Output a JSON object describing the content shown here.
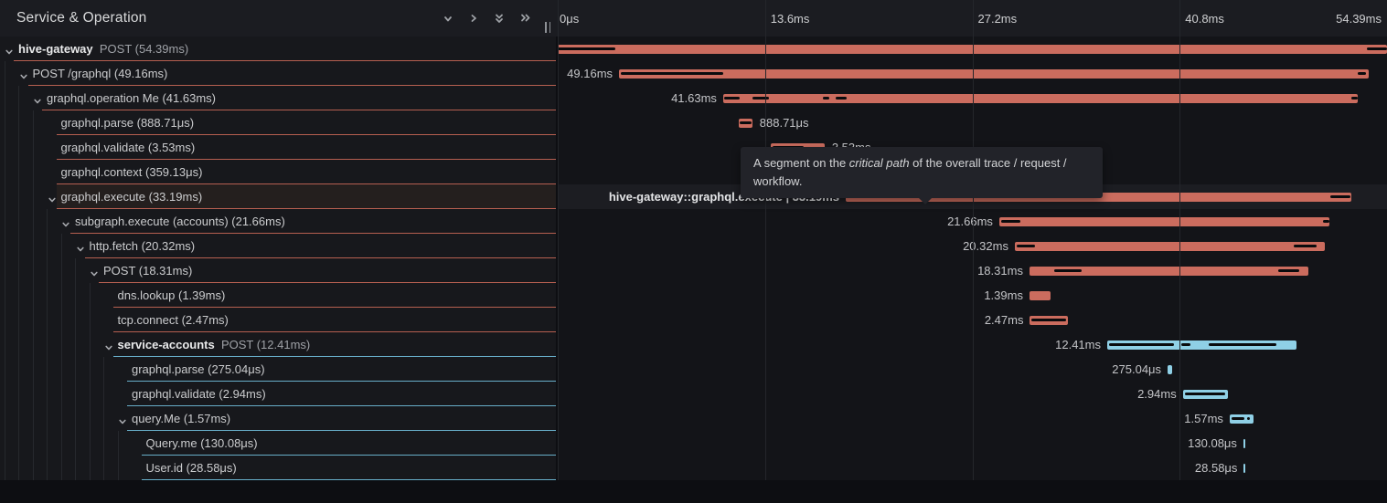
{
  "header": {
    "title": "Service & Operation",
    "icons": [
      "chevron-down-icon",
      "chevron-right-icon",
      "chevrons-down-icon",
      "chevrons-right-icon"
    ]
  },
  "timeline": {
    "ticks": [
      "0μs",
      "13.6ms",
      "27.2ms",
      "40.8ms",
      "54.39ms"
    ],
    "total_ms": 54.39
  },
  "tooltip": {
    "prefix": "A segment on the ",
    "emphasis": "critical path",
    "suffix": " of the overall trace / request / workflow."
  },
  "colors": {
    "salmon_bar": "#cb6c5e",
    "blue_bar": "#8fd0e6",
    "salmon_divider": "#b65f50",
    "blue_divider": "#68aec9",
    "critical_path": "#0a0b0d"
  },
  "rows": [
    {
      "name": "hive-gateway-post",
      "indent": 0,
      "chevron": true,
      "service": "hive-gateway",
      "label": "POST (54.39ms)",
      "color": "salmon",
      "start_ms": 0,
      "duration_ms": 54.39,
      "bar_label": null,
      "bar_label_side": "none",
      "highlighted": false,
      "critical_segments": [
        [
          0,
          0.07
        ],
        [
          0.976,
          1
        ]
      ]
    },
    {
      "name": "post-graphql",
      "indent": 1,
      "chevron": true,
      "service": null,
      "label": "POST /graphql (49.16ms)",
      "color": "salmon",
      "start_ms": 4.02,
      "duration_ms": 49.16,
      "bar_label": "49.16ms",
      "bar_label_side": "left",
      "highlighted": false,
      "critical_segments": [
        [
          0.002,
          0.139
        ],
        [
          0.986,
          0.996
        ]
      ]
    },
    {
      "name": "graphql-operation-me",
      "indent": 2,
      "chevron": true,
      "service": null,
      "label": "graphql.operation Me (41.63ms)",
      "color": "salmon",
      "start_ms": 10.85,
      "duration_ms": 41.63,
      "bar_label": "41.63ms",
      "bar_label_side": "left",
      "highlighted": false,
      "critical_segments": [
        [
          0.002,
          0.026
        ],
        [
          0.046,
          0.072
        ],
        [
          0.157,
          0.167
        ],
        [
          0.177,
          0.195
        ],
        [
          0.99,
          1
        ]
      ]
    },
    {
      "name": "graphql-parse",
      "indent": 3,
      "chevron": false,
      "service": null,
      "label": "graphql.parse (888.71μs)",
      "color": "salmon",
      "start_ms": 11.87,
      "duration_ms": 0.889,
      "bar_label": "888.71μs",
      "bar_label_side": "right",
      "highlighted": false,
      "critical_segments": [
        [
          0.08,
          0.92
        ]
      ]
    },
    {
      "name": "graphql-validate",
      "indent": 3,
      "chevron": false,
      "service": null,
      "label": "graphql.validate (3.53ms)",
      "color": "salmon",
      "start_ms": 13.97,
      "duration_ms": 3.53,
      "bar_label": "3.53ms",
      "bar_label_side": "right",
      "highlighted": false,
      "critical_segments": [
        [
          0.04,
          0.62
        ]
      ]
    },
    {
      "name": "graphql-context",
      "indent": 3,
      "chevron": false,
      "service": null,
      "label": "graphql.context (359.13μs)",
      "color": "salmon",
      "start_ms": 17.53,
      "duration_ms": 0.359,
      "bar_label": "359.13μs",
      "bar_label_side": "right",
      "highlighted": false,
      "critical_segments": []
    },
    {
      "name": "graphql-execute",
      "indent": 3,
      "chevron": true,
      "service": null,
      "label": "graphql.execute (33.19ms)",
      "color": "salmon",
      "start_ms": 18.89,
      "duration_ms": 33.19,
      "bar_label": "hive-gateway::graphql.execute | 33.19ms",
      "bar_label_side": "left",
      "highlighted": true,
      "critical_segments": [
        [
          0.004,
          0.3
        ],
        [
          0.957,
          0.997
        ]
      ]
    },
    {
      "name": "subgraph-execute-accounts",
      "indent": 4,
      "chevron": true,
      "service": null,
      "label": "subgraph.execute (accounts) (21.66ms)",
      "color": "salmon",
      "start_ms": 28.96,
      "duration_ms": 21.66,
      "bar_label": "21.66ms",
      "bar_label_side": "left",
      "highlighted": false,
      "critical_segments": [
        [
          0.006,
          0.063
        ],
        [
          0.98,
          1
        ]
      ]
    },
    {
      "name": "http-fetch",
      "indent": 5,
      "chevron": true,
      "service": null,
      "label": "http.fetch (20.32ms)",
      "color": "salmon",
      "start_ms": 29.98,
      "duration_ms": 20.32,
      "bar_label": "20.32ms",
      "bar_label_side": "left",
      "highlighted": false,
      "critical_segments": [
        [
          0.006,
          0.066
        ],
        [
          0.9,
          0.975
        ]
      ]
    },
    {
      "name": "post-18ms",
      "indent": 6,
      "chevron": true,
      "service": null,
      "label": "POST (18.31ms)",
      "color": "salmon",
      "start_ms": 30.94,
      "duration_ms": 18.31,
      "bar_label": "18.31ms",
      "bar_label_side": "left",
      "highlighted": false,
      "critical_segments": [
        [
          0.088,
          0.188
        ],
        [
          0.89,
          0.965
        ]
      ]
    },
    {
      "name": "dns-lookup",
      "indent": 7,
      "chevron": false,
      "service": null,
      "label": "dns.lookup (1.39ms)",
      "color": "salmon",
      "start_ms": 30.94,
      "duration_ms": 1.39,
      "bar_label": "1.39ms",
      "bar_label_side": "left",
      "highlighted": false,
      "critical_segments": []
    },
    {
      "name": "tcp-connect",
      "indent": 7,
      "chevron": false,
      "service": null,
      "label": "tcp.connect (2.47ms)",
      "color": "salmon",
      "start_ms": 30.97,
      "duration_ms": 2.47,
      "bar_label": "2.47ms",
      "bar_label_side": "left",
      "highlighted": false,
      "critical_segments": [
        [
          0.05,
          0.95
        ]
      ]
    },
    {
      "name": "service-accounts-post",
      "indent": 7,
      "chevron": true,
      "service": "service-accounts",
      "label": "POST (12.41ms)",
      "color": "blue",
      "start_ms": 36.04,
      "duration_ms": 12.41,
      "bar_label": "12.41ms",
      "bar_label_side": "left",
      "highlighted": false,
      "critical_segments": [
        [
          0.01,
          0.355
        ],
        [
          0.39,
          0.44
        ],
        [
          0.535,
          0.895
        ]
      ]
    },
    {
      "name": "sa-graphql-parse",
      "indent": 8,
      "chevron": false,
      "service": null,
      "label": "graphql.parse (275.04μs)",
      "color": "blue",
      "start_ms": 40.0,
      "duration_ms": 0.275,
      "bar_label": "275.04μs",
      "bar_label_side": "left",
      "highlighted": false,
      "critical_segments": []
    },
    {
      "name": "sa-graphql-validate",
      "indent": 8,
      "chevron": false,
      "service": null,
      "label": "graphql.validate (2.94ms)",
      "color": "blue",
      "start_ms": 41.0,
      "duration_ms": 2.94,
      "bar_label": "2.94ms",
      "bar_label_side": "left",
      "highlighted": false,
      "critical_segments": [
        [
          0.05,
          0.95
        ]
      ]
    },
    {
      "name": "query-me",
      "indent": 8,
      "chevron": true,
      "service": null,
      "label": "query.Me (1.57ms)",
      "color": "blue",
      "start_ms": 44.07,
      "duration_ms": 1.57,
      "bar_label": "1.57ms",
      "bar_label_side": "left",
      "highlighted": false,
      "critical_segments": [
        [
          0.08,
          0.6
        ],
        [
          0.72,
          0.85
        ]
      ]
    },
    {
      "name": "query-me-resolver",
      "indent": 9,
      "chevron": false,
      "service": null,
      "label": "Query.me (130.08μs)",
      "color": "blue",
      "start_ms": 44.97,
      "duration_ms": 0.13,
      "bar_label": "130.08μs",
      "bar_label_side": "left",
      "highlighted": false,
      "critical_segments": []
    },
    {
      "name": "user-id",
      "indent": 9,
      "chevron": false,
      "service": null,
      "label": "User.id (28.58μs)",
      "color": "blue",
      "start_ms": 45.0,
      "duration_ms": 0.0286,
      "bar_label": "28.58μs",
      "bar_label_side": "left",
      "highlighted": false,
      "critical_segments": []
    }
  ]
}
